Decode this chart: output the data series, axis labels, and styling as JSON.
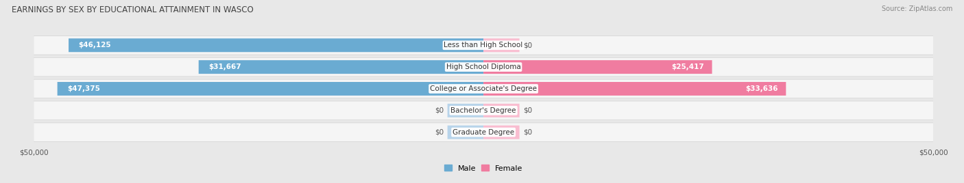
{
  "title": "EARNINGS BY SEX BY EDUCATIONAL ATTAINMENT IN WASCO",
  "source": "Source: ZipAtlas.com",
  "categories": [
    "Less than High School",
    "High School Diploma",
    "College or Associate's Degree",
    "Bachelor's Degree",
    "Graduate Degree"
  ],
  "male_values": [
    46125,
    31667,
    47375,
    0,
    0
  ],
  "female_values": [
    0,
    25417,
    33636,
    0,
    0
  ],
  "male_color": "#6aabd2",
  "female_color": "#f07ca0",
  "male_color_light": "#b8d4ea",
  "female_color_light": "#f9bdd0",
  "male_label": "Male",
  "female_label": "Female",
  "axis_max": 50000,
  "zero_placeholder": 4000,
  "bg_color": "#e8e8e8",
  "row_bg_color": "#f5f5f5",
  "row_border_color": "#d0d0d0",
  "title_fontsize": 8.5,
  "bar_label_fontsize": 7.5,
  "cat_label_fontsize": 7.5,
  "source_fontsize": 7,
  "tick_fontsize": 7.5
}
